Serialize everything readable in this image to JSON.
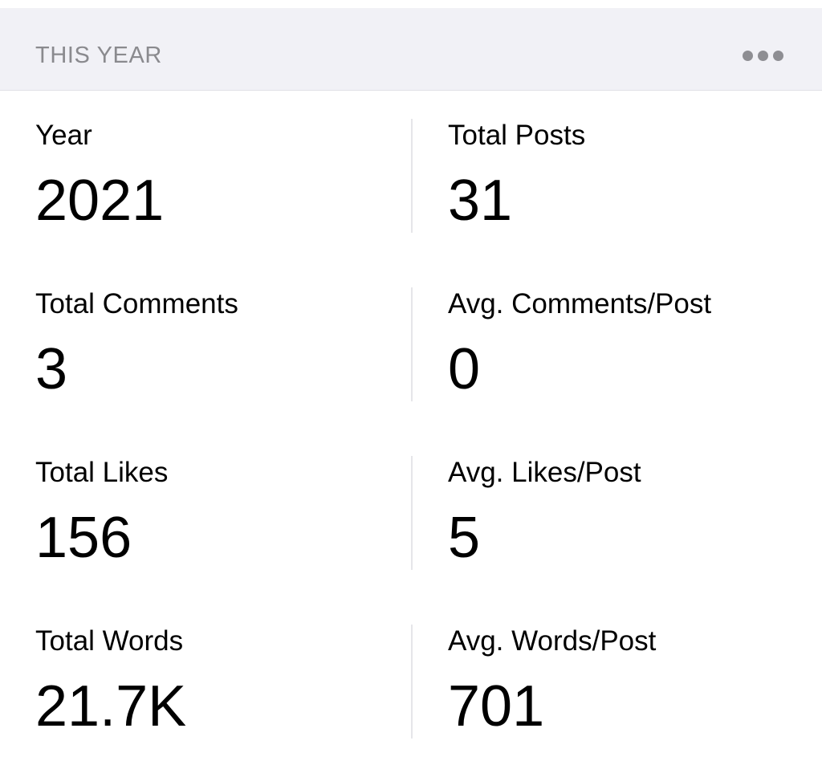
{
  "header": {
    "title": "THIS YEAR",
    "more_icon": "ellipsis-icon"
  },
  "rows": [
    {
      "left": {
        "label": "Year",
        "value": "2021"
      },
      "right": {
        "label": "Total Posts",
        "value": "31"
      }
    },
    {
      "left": {
        "label": "Total Comments",
        "value": "3"
      },
      "right": {
        "label": "Avg. Comments/Post",
        "value": "0"
      }
    },
    {
      "left": {
        "label": "Total Likes",
        "value": "156"
      },
      "right": {
        "label": "Avg. Likes/Post",
        "value": "5"
      }
    },
    {
      "left": {
        "label": "Total Words",
        "value": "21.7K"
      },
      "right": {
        "label": "Avg. Words/Post",
        "value": "701"
      }
    }
  ],
  "colors": {
    "header_bg": "#F1F1F6",
    "header_text": "#8A8A8E",
    "header_hairline": "#E1E1E6",
    "divider": "#E6E6E9",
    "stat_text": "#000000",
    "more_dots": "#8E8E93"
  }
}
